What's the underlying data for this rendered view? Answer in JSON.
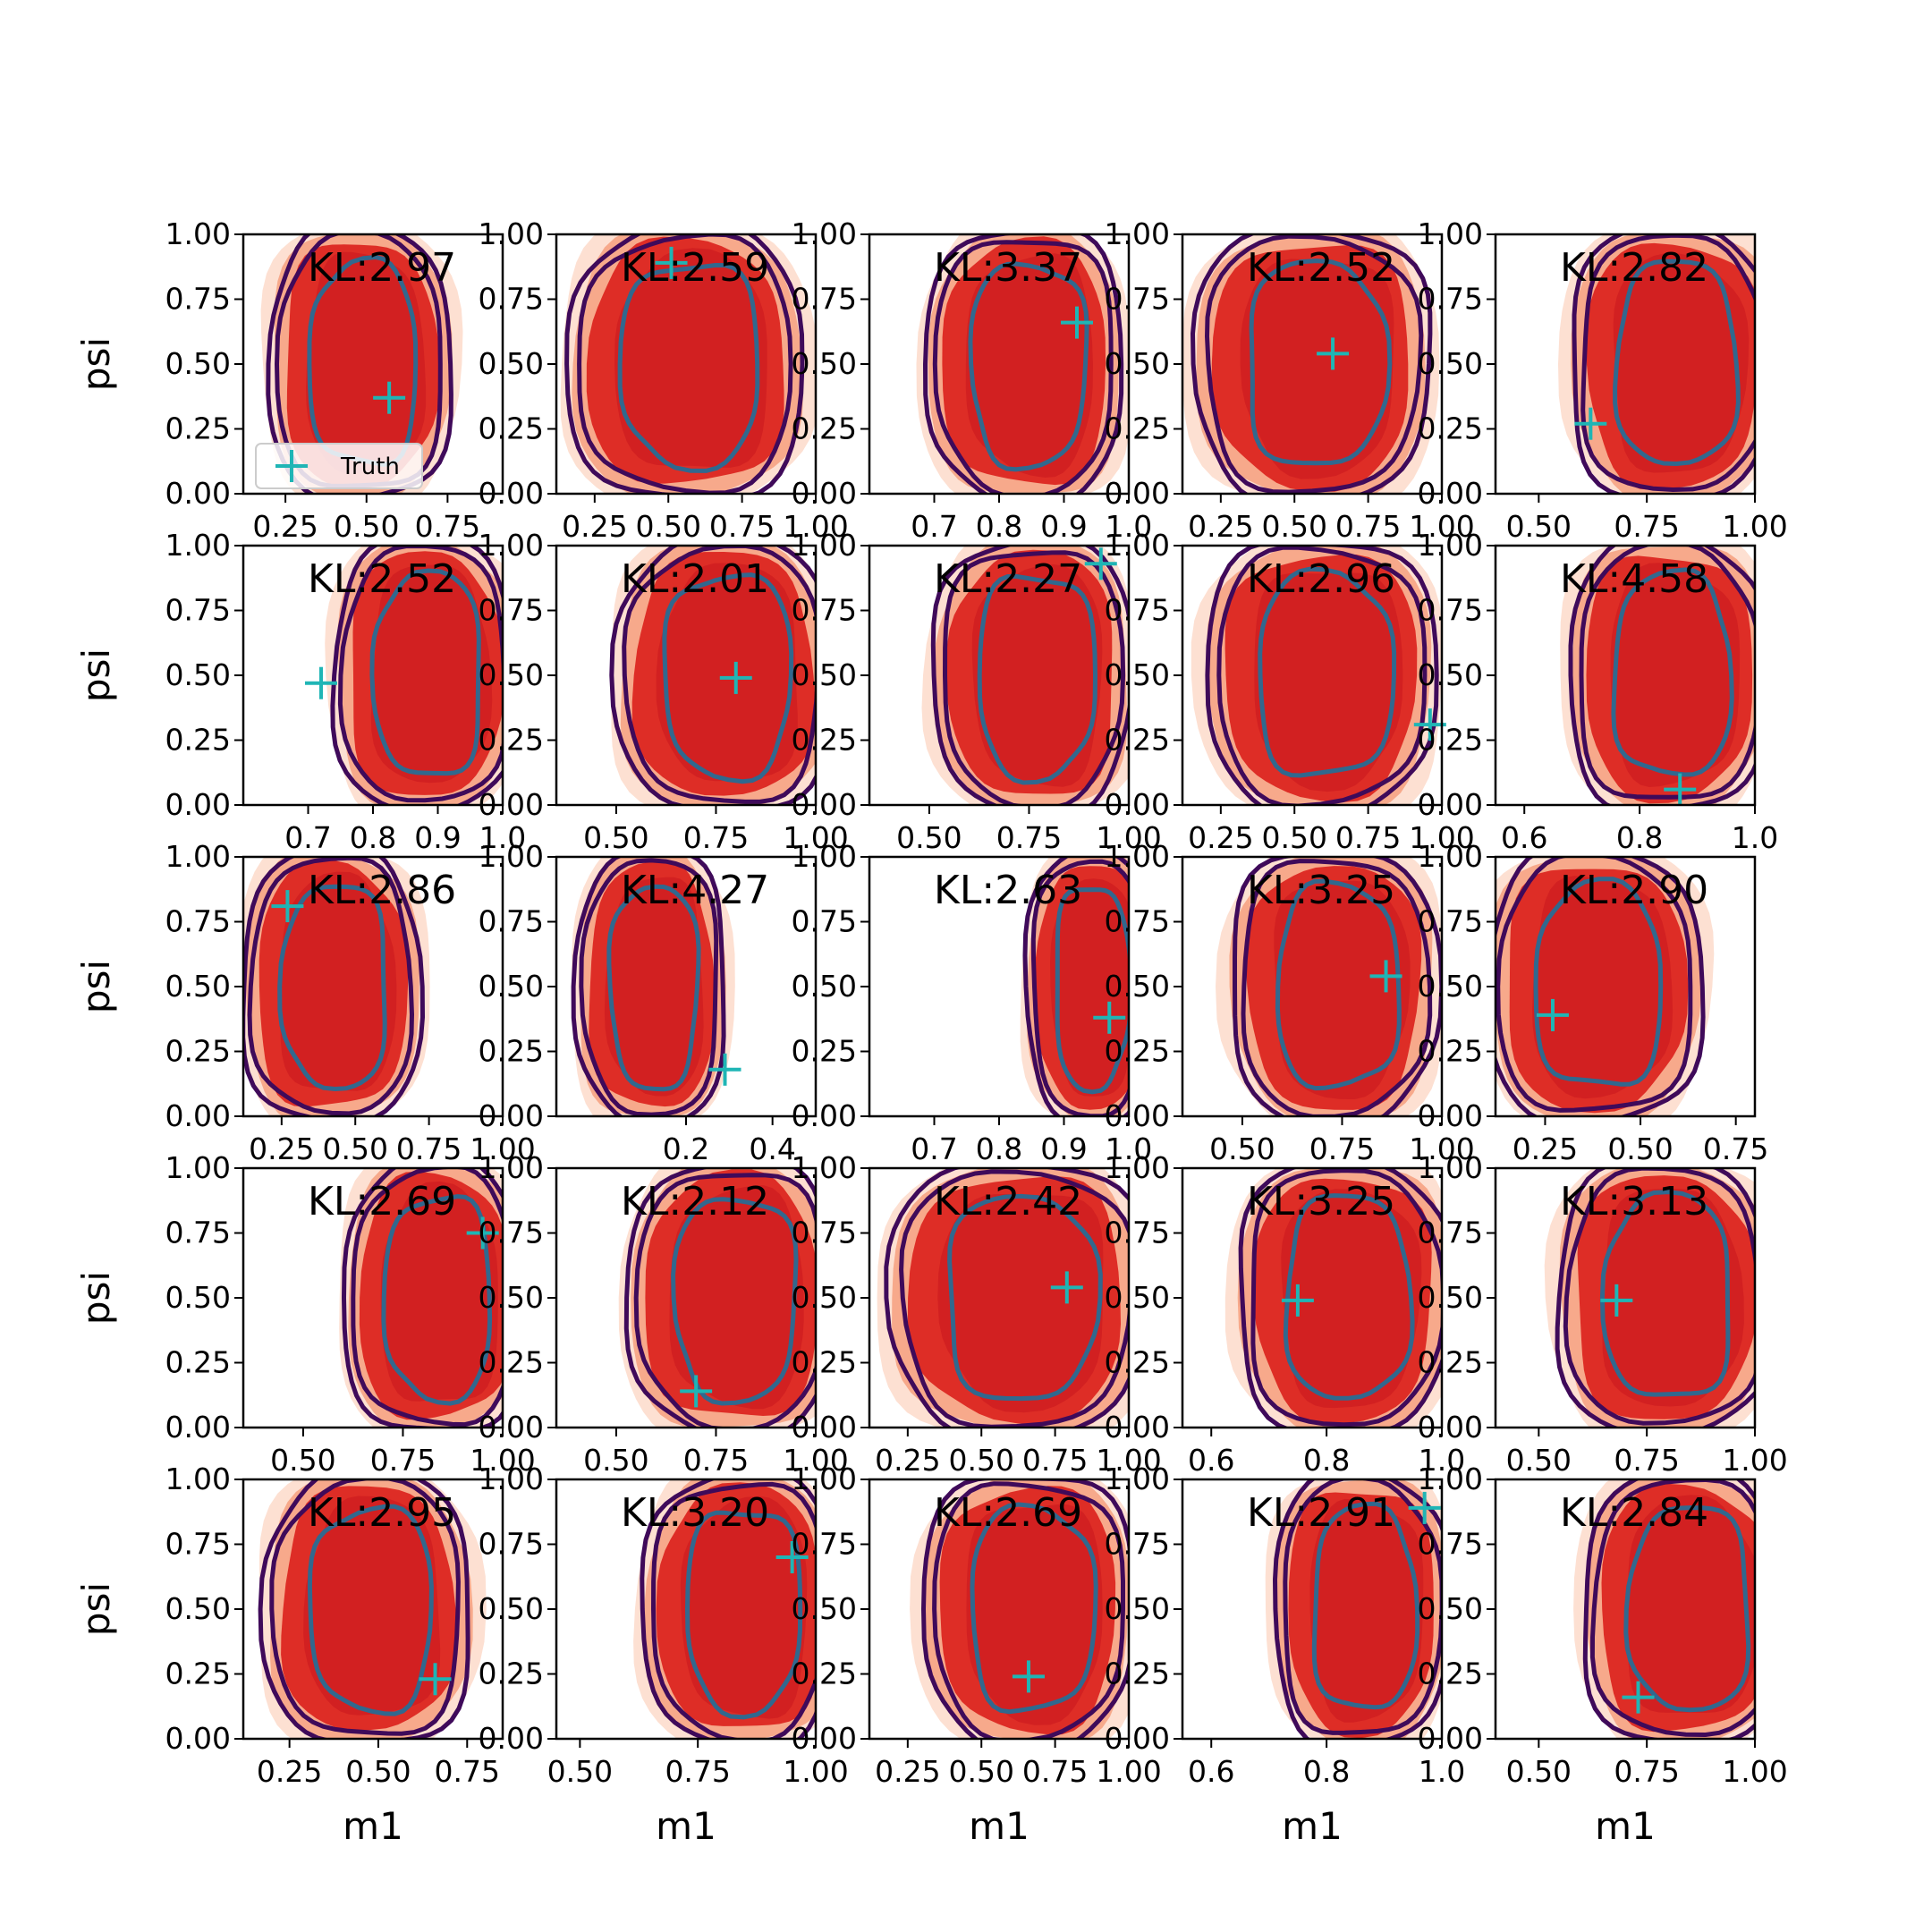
{
  "chart_data": {
    "type": "grid-of-kde-contour-plots",
    "rows": 5,
    "cols": 5,
    "xlabel": "m1",
    "ylabel": "psi",
    "legend": {
      "label": "Truth",
      "placement": "lower-left of first panel"
    },
    "colors": {
      "fill_light": "#fde0d2",
      "fill_mid": "#f7a98b",
      "fill_red": "#de2d26",
      "fill_dark": "#c8161d",
      "contour_outer": "#3f0a5a",
      "contour_inner": "#31688e",
      "truth_marker": "#1fb5b5"
    },
    "panels": [
      {
        "kl": "KL:2.97",
        "xlim": [
          0.12,
          0.92
        ],
        "xticks": [
          0.25,
          0.5,
          0.75
        ],
        "xticklabels": [
          "0.25",
          "0.50",
          "0.75"
        ],
        "cx": 0.48,
        "rx": 0.26,
        "truth": [
          0.57,
          0.37
        ],
        "legend": true
      },
      {
        "kl": "KL:2.59",
        "xlim": [
          0.12,
          1.0
        ],
        "xticks": [
          0.25,
          0.5,
          0.75,
          1.0
        ],
        "xticklabels": [
          "0.25",
          "0.50",
          "0.75",
          "1.00"
        ],
        "cx": 0.56,
        "rx": 0.37,
        "truth": [
          0.51,
          0.89
        ]
      },
      {
        "kl": "KL:3.37",
        "xlim": [
          0.6,
          1.0
        ],
        "xticks": [
          0.7,
          0.8,
          0.9,
          1.0
        ],
        "xticklabels": [
          "0.7",
          "0.8",
          "0.9",
          "1.0"
        ],
        "cx": 0.84,
        "rx": 0.14,
        "truth": [
          0.92,
          0.66
        ]
      },
      {
        "kl": "KL:2.52",
        "xlim": [
          0.12,
          1.0
        ],
        "xticks": [
          0.25,
          0.5,
          0.75,
          1.0
        ],
        "xticklabels": [
          "0.25",
          "0.50",
          "0.75",
          "1.00"
        ],
        "cx": 0.56,
        "rx": 0.37,
        "truth": [
          0.63,
          0.54
        ]
      },
      {
        "kl": "KL:2.82",
        "xlim": [
          0.4,
          1.0
        ],
        "xticks": [
          0.5,
          0.75,
          1.0
        ],
        "xticklabels": [
          "0.50",
          "0.75",
          "1.00"
        ],
        "cx": 0.81,
        "rx": 0.22,
        "truth": [
          0.62,
          0.27
        ]
      },
      {
        "kl": "KL:2.52",
        "xlim": [
          0.6,
          1.0
        ],
        "xticks": [
          0.7,
          0.8,
          0.9,
          1.0
        ],
        "xticklabels": [
          "0.7",
          "0.8",
          "0.9",
          "1.0"
        ],
        "cx": 0.88,
        "rx": 0.13,
        "truth": [
          0.72,
          0.47
        ]
      },
      {
        "kl": "KL:2.01",
        "xlim": [
          0.35,
          1.0
        ],
        "xticks": [
          0.5,
          0.75,
          1.0
        ],
        "xticklabels": [
          "0.50",
          "0.75",
          "1.00"
        ],
        "cx": 0.77,
        "rx": 0.25,
        "truth": [
          0.8,
          0.49
        ]
      },
      {
        "kl": "KL:2.27",
        "xlim": [
          0.35,
          1.0
        ],
        "xticks": [
          0.5,
          0.75,
          1.0
        ],
        "xticklabels": [
          "0.50",
          "0.75",
          "1.00"
        ],
        "cx": 0.76,
        "rx": 0.23,
        "truth": [
          0.93,
          0.93
        ]
      },
      {
        "kl": "KL:2.96",
        "xlim": [
          0.12,
          1.0
        ],
        "xticks": [
          0.25,
          0.5,
          0.75,
          1.0
        ],
        "xticklabels": [
          "0.25",
          "0.50",
          "0.75",
          "1.00"
        ],
        "cx": 0.59,
        "rx": 0.36,
        "truth": [
          0.96,
          0.31
        ]
      },
      {
        "kl": "KL:4.58",
        "xlim": [
          0.55,
          1.0
        ],
        "xticks": [
          0.6,
          0.8,
          1.0
        ],
        "xticklabels": [
          "0.6",
          "0.8",
          "1.0"
        ],
        "cx": 0.85,
        "rx": 0.16,
        "truth": [
          0.87,
          0.06
        ]
      },
      {
        "kl": "KL:2.86",
        "xlim": [
          0.12,
          1.0
        ],
        "xticks": [
          0.25,
          0.5,
          0.75,
          1.0
        ],
        "xticklabels": [
          "0.25",
          "0.50",
          "0.75",
          "1.00"
        ],
        "cx": 0.42,
        "rx": 0.28,
        "truth": [
          0.27,
          0.81
        ]
      },
      {
        "kl": "KL:4.27",
        "xlim": [
          -0.1,
          0.5
        ],
        "xticks": [
          0.2,
          0.4
        ],
        "xticklabels": [
          "0.2",
          "0.4"
        ],
        "cx": 0.12,
        "rx": 0.16,
        "truth": [
          0.29,
          0.18
        ]
      },
      {
        "kl": "KL:2.63",
        "xlim": [
          0.6,
          1.0
        ],
        "xticks": [
          0.7,
          0.8,
          0.9,
          1.0
        ],
        "xticklabels": [
          "0.7",
          "0.8",
          "0.9",
          "1.0"
        ],
        "cx": 0.94,
        "rx": 0.09,
        "truth": [
          0.97,
          0.38
        ]
      },
      {
        "kl": "KL:3.25",
        "xlim": [
          0.35,
          1.0
        ],
        "xticks": [
          0.5,
          0.75,
          1.0
        ],
        "xticklabels": [
          "0.50",
          "0.75",
          "1.00"
        ],
        "cx": 0.73,
        "rx": 0.24,
        "truth": [
          0.86,
          0.54
        ]
      },
      {
        "kl": "KL:2.90",
        "xlim": [
          0.12,
          0.8
        ],
        "xticks": [
          0.25,
          0.5,
          0.75
        ],
        "xticklabels": [
          "0.25",
          "0.50",
          "0.75"
        ],
        "cx": 0.38,
        "rx": 0.26,
        "truth": [
          0.27,
          0.39
        ]
      },
      {
        "kl": "KL:2.69",
        "xlim": [
          0.35,
          1.0
        ],
        "xticks": [
          0.5,
          0.75,
          1.0
        ],
        "xticklabels": [
          "0.50",
          "0.75",
          "1.00"
        ],
        "cx": 0.83,
        "rx": 0.21,
        "truth": [
          0.95,
          0.75
        ]
      },
      {
        "kl": "KL:2.12",
        "xlim": [
          0.35,
          1.0
        ],
        "xticks": [
          0.5,
          0.75,
          1.0
        ],
        "xticklabels": [
          "0.50",
          "0.75",
          "1.00"
        ],
        "cx": 0.79,
        "rx": 0.24,
        "truth": [
          0.7,
          0.14
        ]
      },
      {
        "kl": "KL:2.42",
        "xlim": [
          0.12,
          1.0
        ],
        "xticks": [
          0.25,
          0.5,
          0.75,
          1.0
        ],
        "xticklabels": [
          "0.25",
          "0.50",
          "0.75",
          "1.00"
        ],
        "cx": 0.62,
        "rx": 0.4,
        "truth": [
          0.79,
          0.54
        ]
      },
      {
        "kl": "KL:3.25",
        "xlim": [
          0.55,
          1.0
        ],
        "xticks": [
          0.6,
          0.8,
          1.0
        ],
        "xticklabels": [
          "0.6",
          "0.8",
          "1.0"
        ],
        "cx": 0.83,
        "rx": 0.17,
        "truth": [
          0.75,
          0.49
        ]
      },
      {
        "kl": "KL:3.13",
        "xlim": [
          0.4,
          1.0
        ],
        "xticks": [
          0.5,
          0.75,
          1.0
        ],
        "xticklabels": [
          "0.50",
          "0.75",
          "1.00"
        ],
        "cx": 0.79,
        "rx": 0.23,
        "truth": [
          0.68,
          0.49
        ]
      },
      {
        "kl": "KL:2.95",
        "xlim": [
          0.12,
          0.85
        ],
        "xticks": [
          0.25,
          0.5,
          0.75
        ],
        "xticklabels": [
          "0.25",
          "0.50",
          "0.75"
        ],
        "cx": 0.47,
        "rx": 0.27,
        "truth": [
          0.66,
          0.23
        ]
      },
      {
        "kl": "KL:3.20",
        "xlim": [
          0.45,
          1.0
        ],
        "xticks": [
          0.5,
          0.75,
          1.0
        ],
        "xticklabels": [
          "0.50",
          "0.75",
          "1.00"
        ],
        "cx": 0.84,
        "rx": 0.19,
        "truth": [
          0.95,
          0.7
        ]
      },
      {
        "kl": "KL:2.69",
        "xlim": [
          0.12,
          1.0
        ],
        "xticks": [
          0.25,
          0.5,
          0.75,
          1.0
        ],
        "xticklabels": [
          "0.25",
          "0.50",
          "0.75",
          "1.00"
        ],
        "cx": 0.66,
        "rx": 0.33,
        "truth": [
          0.66,
          0.24
        ]
      },
      {
        "kl": "KL:2.91",
        "xlim": [
          0.55,
          1.0
        ],
        "xticks": [
          0.6,
          0.8,
          1.0
        ],
        "xticklabels": [
          "0.6",
          "0.8",
          "1.0"
        ],
        "cx": 0.86,
        "rx": 0.14,
        "truth": [
          0.97,
          0.89
        ]
      },
      {
        "kl": "KL:2.84",
        "xlim": [
          0.4,
          1.0
        ],
        "xticks": [
          0.5,
          0.75,
          1.0
        ],
        "xticklabels": [
          "0.50",
          "0.75",
          "1.00"
        ],
        "cx": 0.84,
        "rx": 0.22,
        "truth": [
          0.73,
          0.16
        ]
      }
    ],
    "ylim": [
      0.0,
      1.0
    ],
    "yticks": [
      0.0,
      0.25,
      0.5,
      0.75,
      1.0
    ],
    "yticklabels": [
      "0.00",
      "0.25",
      "0.50",
      "0.75",
      "1.00"
    ]
  }
}
